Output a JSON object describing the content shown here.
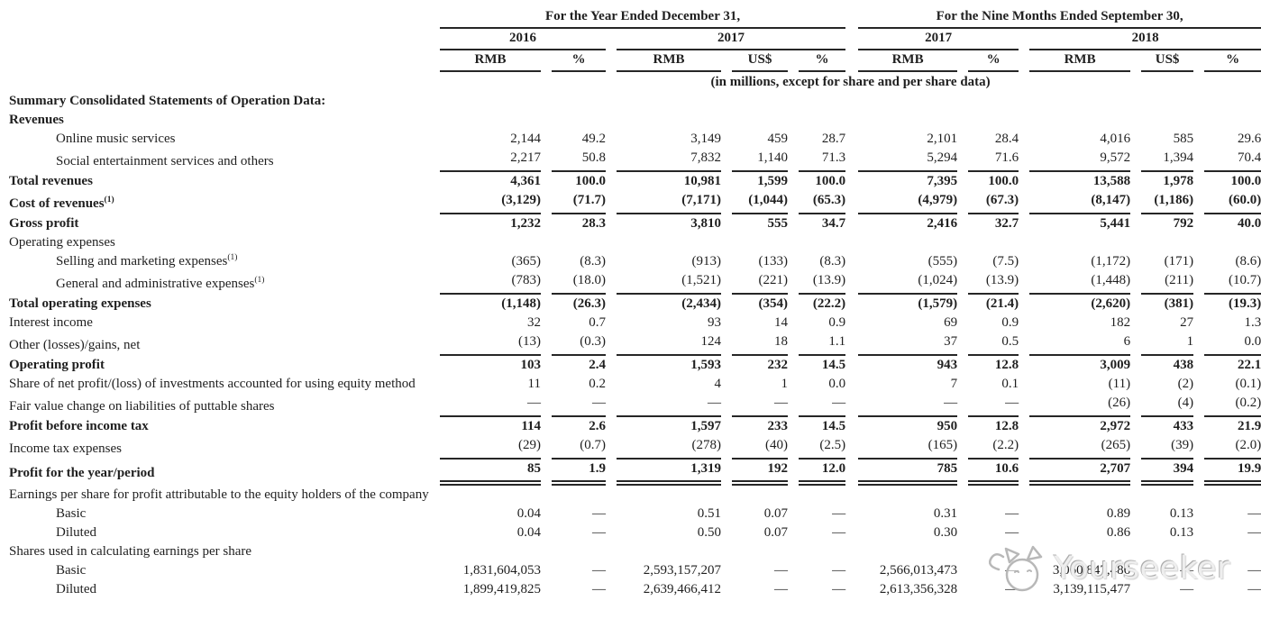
{
  "colors": {
    "text": "#1f1f1f",
    "rule": "#262626",
    "background": "#ffffff",
    "watermark": "#c9c9c9"
  },
  "watermark": {
    "text": "Yourseeker",
    "icon": "cat-logo-icon"
  },
  "table": {
    "col_groups": [
      {
        "title": "For the Year Ended December 31,",
        "years": [
          {
            "label": "2016",
            "cols": [
              "RMB",
              "%"
            ]
          },
          {
            "label": "2017",
            "cols": [
              "RMB",
              "US$",
              "%"
            ]
          }
        ]
      },
      {
        "title": "For the Nine Months Ended September 30,",
        "years": [
          {
            "label": "2017",
            "cols": [
              "RMB",
              "%"
            ]
          },
          {
            "label": "2018",
            "cols": [
              "RMB",
              "US$",
              "%"
            ]
          }
        ]
      }
    ],
    "units_note": "(in millions, except for share and per share data)",
    "rows": [
      {
        "label": "Summary Consolidated Statements of Operation Data:",
        "bold": true,
        "indent": 0,
        "values": []
      },
      {
        "label": "Revenues",
        "bold": true,
        "indent": 0,
        "values": []
      },
      {
        "label": "Online music services",
        "bold": false,
        "indent": 1,
        "values": [
          "2,144",
          "49.2",
          "3,149",
          "459",
          "28.7",
          "2,101",
          "28.4",
          "4,016",
          "585",
          "29.6"
        ]
      },
      {
        "label": "Social entertainment services and others",
        "bold": false,
        "indent": 1,
        "rule": "single",
        "values": [
          "2,217",
          "50.8",
          "7,832",
          "1,140",
          "71.3",
          "5,294",
          "71.6",
          "9,572",
          "1,394",
          "70.4"
        ]
      },
      {
        "label": "Total revenues",
        "bold": true,
        "indent": 0,
        "values": [
          "4,361",
          "100.0",
          "10,981",
          "1,599",
          "100.0",
          "7,395",
          "100.0",
          "13,588",
          "1,978",
          "100.0"
        ]
      },
      {
        "label": "Cost of revenues",
        "sup": "(1)",
        "bold": true,
        "indent": 0,
        "rule": "single",
        "values": [
          "(3,129)",
          "(71.7)",
          "(7,171)",
          "(1,044)",
          "(65.3)",
          "(4,979)",
          "(67.3)",
          "(8,147)",
          "(1,186)",
          "(60.0)"
        ]
      },
      {
        "label": "Gross profit",
        "bold": true,
        "indent": 0,
        "values": [
          "1,232",
          "28.3",
          "3,810",
          "555",
          "34.7",
          "2,416",
          "32.7",
          "5,441",
          "792",
          "40.0"
        ]
      },
      {
        "label": "Operating expenses",
        "bold": false,
        "indent": 0,
        "values": []
      },
      {
        "label": "Selling and marketing expenses",
        "sup": "(1)",
        "bold": false,
        "indent": 1,
        "values": [
          "(365)",
          "(8.3)",
          "(913)",
          "(133)",
          "(8.3)",
          "(555)",
          "(7.5)",
          "(1,172)",
          "(171)",
          "(8.6)"
        ]
      },
      {
        "label": "General and administrative expenses",
        "sup": "(1)",
        "bold": false,
        "indent": 1,
        "rule": "single",
        "values": [
          "(783)",
          "(18.0)",
          "(1,521)",
          "(221)",
          "(13.9)",
          "(1,024)",
          "(13.9)",
          "(1,448)",
          "(211)",
          "(10.7)"
        ]
      },
      {
        "label": "Total operating expenses",
        "bold": true,
        "indent": 0,
        "values": [
          "(1,148)",
          "(26.3)",
          "(2,434)",
          "(354)",
          "(22.2)",
          "(1,579)",
          "(21.4)",
          "(2,620)",
          "(381)",
          "(19.3)"
        ]
      },
      {
        "label": "Interest income",
        "bold": false,
        "indent": 0,
        "values": [
          "32",
          "0.7",
          "93",
          "14",
          "0.9",
          "69",
          "0.9",
          "182",
          "27",
          "1.3"
        ]
      },
      {
        "label": "Other (losses)/gains, net",
        "bold": false,
        "indent": 0,
        "rule": "single",
        "values": [
          "(13)",
          "(0.3)",
          "124",
          "18",
          "1.1",
          "37",
          "0.5",
          "6",
          "1",
          "0.0"
        ]
      },
      {
        "label": "Operating profit",
        "bold": true,
        "indent": 0,
        "values": [
          "103",
          "2.4",
          "1,593",
          "232",
          "14.5",
          "943",
          "12.8",
          "3,009",
          "438",
          "22.1"
        ]
      },
      {
        "label": "Share of net profit/(loss) of investments accounted for using equity method",
        "bold": false,
        "indent": 0,
        "values": [
          "11",
          "0.2",
          "4",
          "1",
          "0.0",
          "7",
          "0.1",
          "(11)",
          "(2)",
          "(0.1)"
        ]
      },
      {
        "label": "Fair value change on liabilities of puttable shares",
        "bold": false,
        "indent": 0,
        "rule": "single",
        "values": [
          "—",
          "—",
          "—",
          "—",
          "—",
          "—",
          "—",
          "(26)",
          "(4)",
          "(0.2)"
        ]
      },
      {
        "label": "Profit before income tax",
        "bold": true,
        "indent": 0,
        "values": [
          "114",
          "2.6",
          "1,597",
          "233",
          "14.5",
          "950",
          "12.8",
          "2,972",
          "433",
          "21.9"
        ]
      },
      {
        "label": "Income tax expenses",
        "bold": false,
        "indent": 0,
        "rule": "single",
        "values": [
          "(29)",
          "(0.7)",
          "(278)",
          "(40)",
          "(2.5)",
          "(165)",
          "(2.2)",
          "(265)",
          "(39)",
          "(2.0)"
        ]
      },
      {
        "label": "Profit for the year/period",
        "bold": true,
        "indent": 0,
        "rule": "double",
        "values": [
          "85",
          "1.9",
          "1,319",
          "192",
          "12.0",
          "785",
          "10.6",
          "2,707",
          "394",
          "19.9"
        ]
      },
      {
        "label": "Earnings per share for profit attributable to the equity holders of the company",
        "bold": false,
        "indent": 0,
        "values": []
      },
      {
        "label": "Basic",
        "bold": false,
        "indent": 1,
        "values": [
          "0.04",
          "—",
          "0.51",
          "0.07",
          "—",
          "0.31",
          "—",
          "0.89",
          "0.13",
          "—"
        ]
      },
      {
        "label": "Diluted",
        "bold": false,
        "indent": 1,
        "values": [
          "0.04",
          "—",
          "0.50",
          "0.07",
          "—",
          "0.30",
          "—",
          "0.86",
          "0.13",
          "—"
        ]
      },
      {
        "label": "Shares used in calculating earnings per share",
        "bold": false,
        "indent": 0,
        "values": []
      },
      {
        "label": "Basic",
        "bold": false,
        "indent": 1,
        "values": [
          "1,831,604,053",
          "—",
          "2,593,157,207",
          "—",
          "—",
          "2,566,013,473",
          "—",
          "3,060,847,486",
          "—",
          "—"
        ]
      },
      {
        "label": "Diluted",
        "bold": false,
        "indent": 1,
        "values": [
          "1,899,419,825",
          "—",
          "2,639,466,412",
          "—",
          "—",
          "2,613,356,328",
          "—",
          "3,139,115,477",
          "—",
          "—"
        ]
      }
    ]
  }
}
